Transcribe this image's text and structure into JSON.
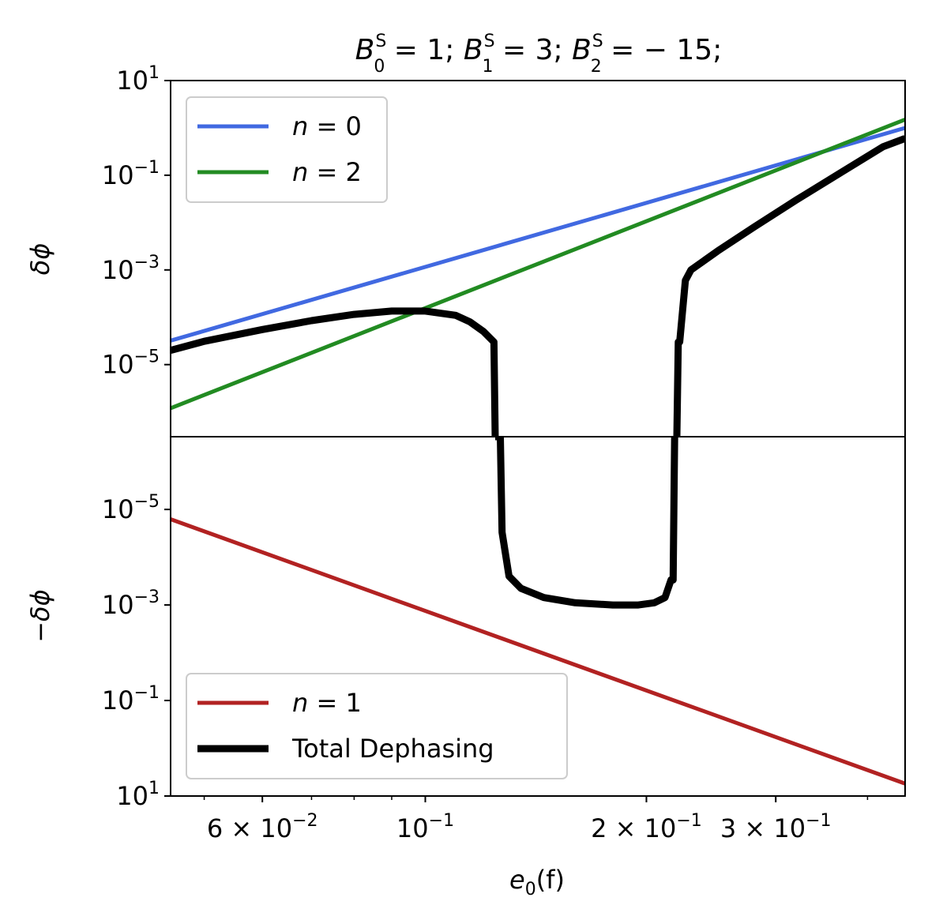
{
  "chart_data": {
    "type": "line",
    "title": {
      "b": "B",
      "sup": "S",
      "sub0": "0",
      "sub1": "1",
      "sub2": "2",
      "v0": " = 1; ",
      "v1": " = 3; ",
      "v2": " = − 15;"
    },
    "xlabel": {
      "e": "e",
      "sub": "0",
      "rest": "(f)"
    },
    "x_scale": "log",
    "xlim": [
      0.045,
      0.45
    ],
    "x_ticks": [
      {
        "value": 0.06,
        "base": "6 × 10",
        "exp": "−2"
      },
      {
        "value": 0.1,
        "base": "10",
        "exp": "−1"
      },
      {
        "value": 0.2,
        "base": "2 × 10",
        "exp": "−1"
      },
      {
        "value": 0.3,
        "base": "3 × 10",
        "exp": "−1"
      }
    ],
    "panels": [
      {
        "name": "top",
        "ylabel": "δϕ",
        "y_scale": "log",
        "ylim": [
          3e-07,
          10
        ],
        "y_ticks": [
          {
            "value": 10,
            "base": "10",
            "exp": "1"
          },
          {
            "value": 0.1,
            "base": "10",
            "exp": "−1"
          },
          {
            "value": 0.001,
            "base": "10",
            "exp": "−3"
          },
          {
            "value": 1e-05,
            "base": "10",
            "exp": "−5"
          }
        ],
        "legend": {
          "position": "upper-left"
        },
        "series": [
          {
            "name": "n = 0",
            "label_var": "n",
            "label_rest": " = 0",
            "color": "#4169e1",
            "x": [
              0.045,
              0.45
            ],
            "y": [
              3.2e-05,
              1.0
            ]
          },
          {
            "name": "n = 2",
            "label_var": "n",
            "label_rest": " = 2",
            "color": "#228b22",
            "x": [
              0.045,
              0.45
            ],
            "y": [
              1.2e-06,
              1.5
            ]
          },
          {
            "name": "Total Dephasing (positive part)",
            "color": "#000000",
            "legend": false,
            "x": [
              0.045,
              0.05,
              0.06,
              0.07,
              0.08,
              0.09,
              0.1,
              0.11,
              0.115,
              0.12,
              0.124,
              0.1245,
              0.1255
            ],
            "y": [
              2e-05,
              3.1e-05,
              5.5e-05,
              8.5e-05,
              0.000115,
              0.000135,
              0.000135,
              0.00011,
              8e-05,
              5e-05,
              3e-05,
              3e-07,
              3e-07
            ]
          },
          {
            "name": "Total Dephasing (positive part)",
            "color": "#000000",
            "legend": false,
            "x": [
              0.22,
              0.221,
              0.222,
              0.226,
              0.23,
              0.25,
              0.28,
              0.32,
              0.37,
              0.42,
              0.45
            ],
            "y": [
              3e-07,
              3e-05,
              3e-05,
              0.0006,
              0.001,
              0.0025,
              0.008,
              0.03,
              0.12,
              0.4,
              0.6
            ]
          }
        ]
      },
      {
        "name": "bottom",
        "ylabel": "−δϕ",
        "y_scale": "log",
        "y_inverted": true,
        "ylim": [
          3e-07,
          10
        ],
        "y_ticks": [
          {
            "value": 1e-05,
            "base": "10",
            "exp": "−5"
          },
          {
            "value": 0.001,
            "base": "10",
            "exp": "−3"
          },
          {
            "value": 0.1,
            "base": "10",
            "exp": "−1"
          },
          {
            "value": 10,
            "base": "10",
            "exp": "1"
          }
        ],
        "legend": {
          "position": "lower-left"
        },
        "series": [
          {
            "name": "n = 1",
            "label_var": "n",
            "label_rest": " = 1",
            "color": "#b22222",
            "x": [
              0.045,
              0.45
            ],
            "y": [
              1.6e-05,
              5.5
            ]
          },
          {
            "name": "Total Dephasing",
            "color": "#000000",
            "legend_label": "Total Dephasing",
            "x": [
              0.1245,
              0.1255,
              0.1265,
              0.1272,
              0.13,
              0.135,
              0.145,
              0.16,
              0.18,
              0.195,
              0.205,
              0.212,
              0.216,
              0.2175,
              0.2185,
              0.22
            ],
            "y": [
              3e-07,
              3e-07,
              3e-07,
              3e-05,
              0.00025,
              0.00045,
              0.0007,
              0.0009,
              0.001,
              0.001,
              0.0009,
              0.0007,
              0.0003,
              0.0003,
              3e-07,
              3e-07
            ]
          }
        ]
      }
    ]
  }
}
